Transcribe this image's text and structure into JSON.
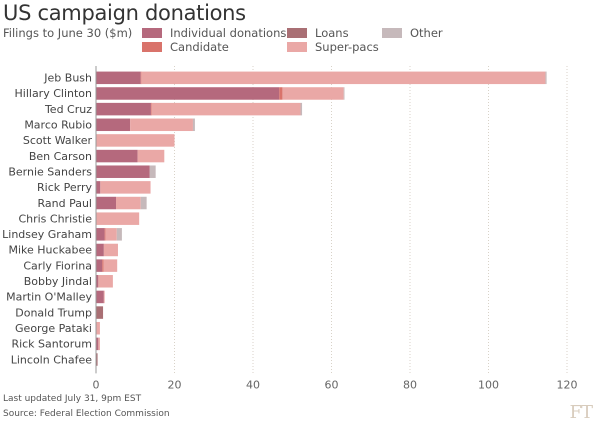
{
  "chart_data": {
    "type": "bar",
    "orientation": "horizontal",
    "stacked": true,
    "title": "US campaign donations",
    "subtitle": "Filings to June 30 ($m)",
    "xlabel": "",
    "ylabel": "",
    "xlim": [
      0,
      120
    ],
    "xticks": [
      0,
      20,
      40,
      60,
      80,
      100,
      120
    ],
    "grid": "vertical-dotted",
    "legend_position": "top",
    "categories": [
      "Jeb Bush",
      "Hillary Clinton",
      "Ted Cruz",
      "Marco Rubio",
      "Scott Walker",
      "Ben Carson",
      "Bernie Sanders",
      "Rick Perry",
      "Rand Paul",
      "Chris Christie",
      "Lindsey Graham",
      "Mike Huckabee",
      "Carly Fiorina",
      "Bobby Jindal",
      "Martin O'Malley",
      "Donald Trump",
      "George Pataki",
      "Rick Santorum",
      "Lincoln Chafee"
    ],
    "series": [
      {
        "name": "Individual donations",
        "color": "#b5697d",
        "values": [
          11.4,
          46.7,
          14.0,
          8.7,
          0,
          10.6,
          13.7,
          1.1,
          5.1,
          0,
          2.2,
          2.0,
          1.6,
          0.6,
          2.0,
          0,
          0,
          0.6,
          0
        ]
      },
      {
        "name": "Candidate",
        "color": "#d9736b",
        "values": [
          0.1,
          0.8,
          0.1,
          0,
          0,
          0,
          0,
          0,
          0,
          0,
          0.2,
          0,
          0.3,
          0,
          0,
          0,
          0,
          0,
          0
        ]
      },
      {
        "name": "Loans",
        "color": "#a96f74",
        "values": [
          0,
          0,
          0,
          0,
          0,
          0,
          0,
          0,
          0,
          0,
          0,
          0,
          0,
          0,
          0,
          1.8,
          0,
          0,
          0.4
        ]
      },
      {
        "name": "Super-pacs",
        "color": "#eaa8a6",
        "values": [
          103.0,
          15.6,
          38.0,
          16.0,
          20.0,
          6.8,
          0,
          12.8,
          6.3,
          11.0,
          2.9,
          3.6,
          3.5,
          3.7,
          0.2,
          0,
          1.0,
          0.4,
          0
        ]
      },
      {
        "name": "Other",
        "color": "#c6b9bb",
        "values": [
          0.3,
          0.2,
          0.4,
          0.5,
          0,
          0,
          1.5,
          0,
          1.5,
          0,
          1.3,
          0,
          0,
          0,
          0,
          0,
          0,
          0,
          0
        ]
      }
    ]
  },
  "footer": {
    "updated": "Last updated July 31, 9pm EST",
    "source": "Source: Federal Election Commission",
    "logo": "FT"
  }
}
